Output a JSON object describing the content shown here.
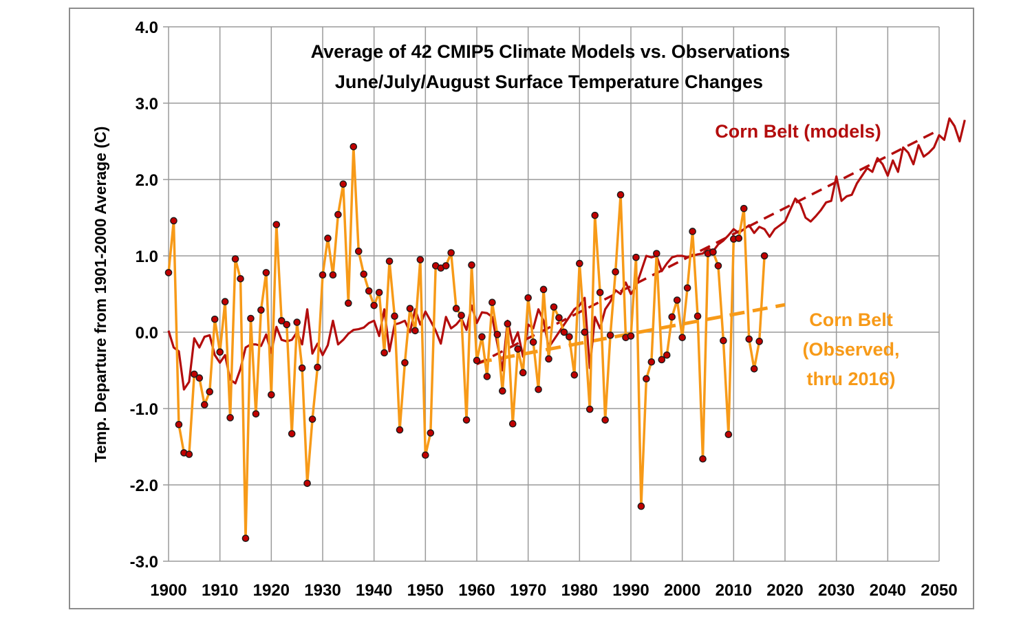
{
  "chart_data": {
    "type": "line",
    "title": "Average of 42 CMIP5 Climate Models vs. Observations",
    "subtitle": "June/July/August Surface Temperature Changes",
    "xlabel": "",
    "ylabel": "Temp. Departure from 1901-2000 Average (C)",
    "xlim": [
      1900,
      2050
    ],
    "ylim": [
      -3.0,
      4.0
    ],
    "x_ticks": [
      "1900",
      "1910",
      "1920",
      "1930",
      "1940",
      "1950",
      "1960",
      "1970",
      "1980",
      "1990",
      "2000",
      "2010",
      "2020",
      "2030",
      "2040",
      "2050"
    ],
    "y_ticks": [
      "4.0",
      "3.0",
      "2.0",
      "1.0",
      "0.0",
      "-1.0",
      "-2.0",
      "-3.0"
    ],
    "grid": true,
    "colors": {
      "models": "#b30d0d",
      "observed": "#f79a18",
      "marker": "#c00000"
    },
    "series": [
      {
        "name": "Corn Belt (models)",
        "label": "Corn Belt (models)",
        "style": "solid",
        "x_start": 1900,
        "values": [
          0.02,
          -0.2,
          -0.25,
          -0.75,
          -0.65,
          -0.08,
          -0.2,
          -0.06,
          -0.04,
          -0.3,
          -0.4,
          -0.3,
          -0.62,
          -0.67,
          -0.48,
          -0.2,
          -0.16,
          -0.16,
          -0.18,
          -0.03,
          -0.27,
          0.07,
          -0.1,
          -0.12,
          -0.1,
          0.0,
          -0.16,
          0.3,
          -0.28,
          -0.15,
          -0.3,
          -0.17,
          0.15,
          -0.16,
          -0.1,
          -0.02,
          0.03,
          0.04,
          0.06,
          0.12,
          0.15,
          -0.05,
          0.3,
          -0.25,
          0.1,
          0.12,
          0.15,
          0.0,
          0.3,
          0.1,
          0.27,
          0.15,
          0.02,
          -0.15,
          0.2,
          0.05,
          0.1,
          0.18,
          0.03,
          0.35,
          0.12,
          0.26,
          0.25,
          0.2,
          -0.15,
          -0.5,
          0.15,
          -0.15,
          0.0,
          -0.32,
          0.1,
          0.05,
          0.3,
          0.15,
          -0.2,
          -0.1,
          0.0,
          0.1,
          0.2,
          0.3,
          0.35,
          0.45,
          -0.47,
          0.2,
          0.05,
          0.3,
          0.4,
          0.55,
          0.5,
          0.65,
          0.5,
          0.6,
          0.8,
          1.0,
          0.98,
          1.0,
          0.8,
          0.9,
          0.98,
          1.0,
          1.0,
          0.98,
          1.0,
          1.02,
          1.03,
          1.1,
          1.06,
          1.15,
          1.2,
          1.27,
          1.35,
          1.3,
          1.35,
          1.4,
          1.3,
          1.38,
          1.35,
          1.25,
          1.35,
          1.4,
          1.45,
          1.6,
          1.75,
          1.68,
          1.5,
          1.45,
          1.52,
          1.6,
          1.7,
          1.72,
          2.04,
          1.72,
          1.78,
          1.8,
          1.95,
          2.05,
          2.15,
          2.1,
          2.28,
          2.2,
          2.05,
          2.25,
          2.1,
          2.42,
          2.35,
          2.2,
          2.45,
          2.3,
          2.35,
          2.42,
          2.58,
          2.52,
          2.8,
          2.7,
          2.5,
          2.78
        ]
      },
      {
        "name": "Corn Belt (Observed, thru 2016)",
        "label_lines": [
          "Corn Belt",
          "(Observed,",
          "thru 2016)"
        ],
        "style": "solid-with-markers",
        "x_start": 1900,
        "values": [
          0.78,
          1.46,
          -1.21,
          -1.58,
          -1.6,
          -0.55,
          -0.6,
          -0.95,
          -0.78,
          0.17,
          -0.26,
          0.4,
          -1.12,
          0.96,
          0.7,
          -2.7,
          0.18,
          -1.07,
          0.29,
          0.78,
          -0.82,
          1.41,
          0.15,
          0.1,
          -1.33,
          0.13,
          -0.47,
          -1.98,
          -1.14,
          -0.46,
          0.75,
          1.23,
          0.75,
          1.54,
          1.94,
          0.38,
          2.43,
          1.06,
          0.76,
          0.54,
          0.35,
          0.52,
          -0.27,
          0.93,
          0.21,
          -1.28,
          -0.4,
          0.31,
          0.02,
          0.95,
          -1.61,
          -1.32,
          0.87,
          0.84,
          0.87,
          1.04,
          0.31,
          0.22,
          -1.15,
          0.88,
          -0.37,
          -0.06,
          -0.58,
          0.39,
          -0.03,
          -0.77,
          0.11,
          -1.2,
          -0.22,
          -0.53,
          0.45,
          -0.13,
          -0.75,
          0.56,
          -0.35,
          0.33,
          0.19,
          0.0,
          -0.06,
          -0.56,
          0.9,
          0.0,
          -1.01,
          1.53,
          0.52,
          -1.15,
          -0.04,
          0.79,
          1.8,
          -0.07,
          -0.05,
          0.98,
          -2.28,
          -0.61,
          -0.39,
          1.03,
          -0.36,
          -0.3,
          0.2,
          0.42,
          -0.07,
          0.58,
          1.32,
          0.21,
          -1.66,
          1.03,
          1.05,
          0.87,
          -0.11,
          -1.34,
          1.22,
          1.23,
          1.62,
          -0.09,
          -0.48,
          -0.12,
          1.0
        ]
      },
      {
        "name": "Models trend",
        "style": "dashed",
        "points": [
          [
            1960,
            -0.42
          ],
          [
            2050,
            2.65
          ]
        ]
      },
      {
        "name": "Observed trend",
        "style": "dashed",
        "points": [
          [
            1960,
            -0.4
          ],
          [
            2020,
            0.36
          ]
        ]
      }
    ]
  }
}
